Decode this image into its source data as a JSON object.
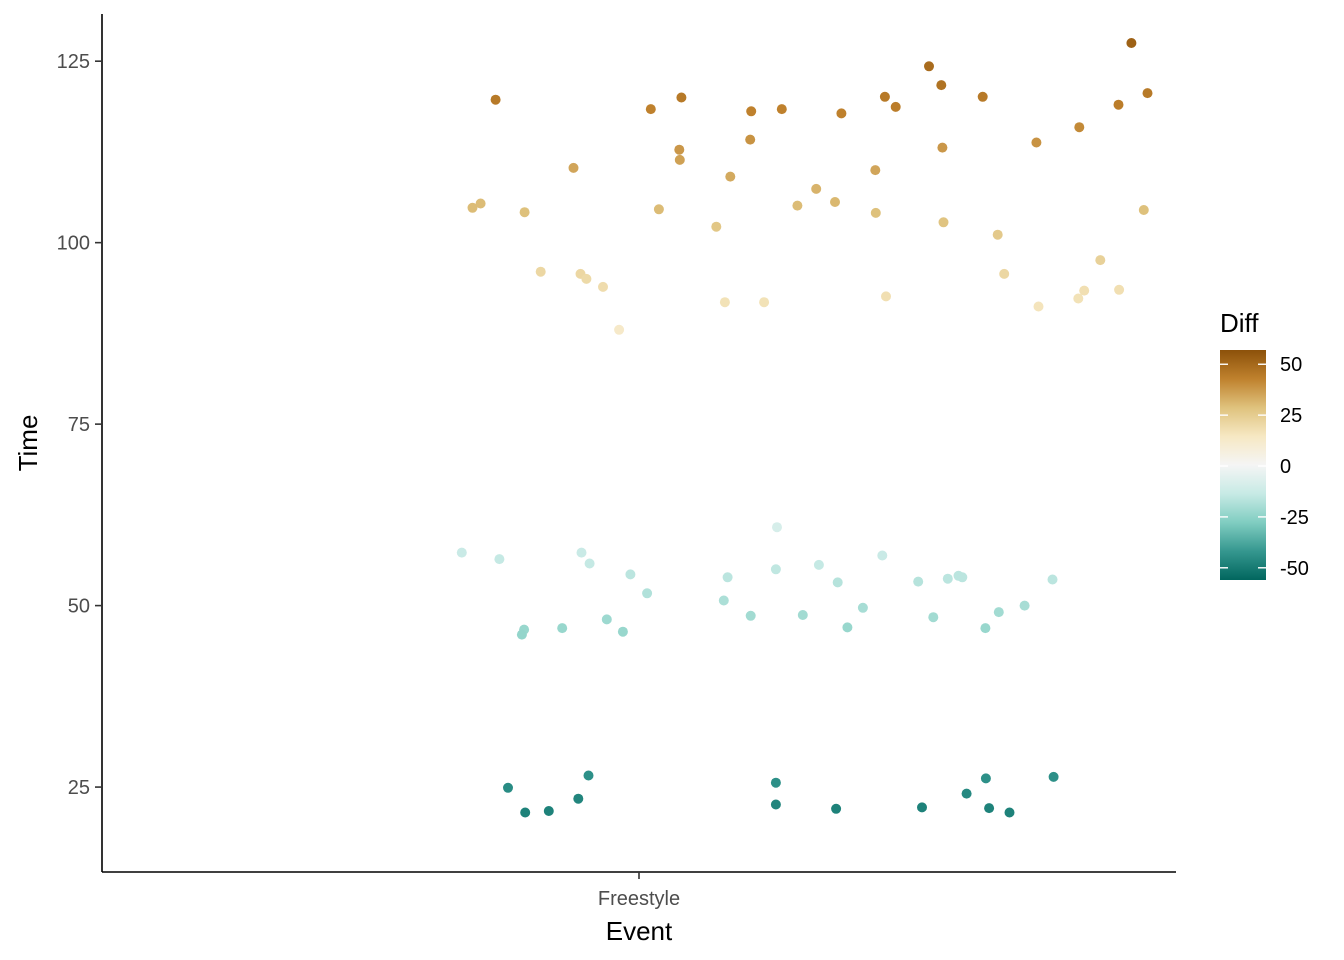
{
  "chart_data": {
    "type": "scatter",
    "title": "",
    "xlabel": "Event",
    "ylabel": "Time",
    "categories": [
      "Freestyle"
    ],
    "ylim": [
      13.3,
      131.5
    ],
    "yticks": [
      25,
      50,
      75,
      100,
      125
    ],
    "grid": false,
    "jitter_range": [
      -0.5,
      0.5
    ],
    "color_scale": {
      "name": "Diff",
      "palette": "BrBG",
      "limits": [
        -56,
        57
      ],
      "breaks": [
        50,
        25,
        0,
        -25,
        -50
      ],
      "colors": [
        "#01665e",
        "#35978f",
        "#80cdc1",
        "#c7eae5",
        "#f5f5f5",
        "#f6e8c3",
        "#dfc27d",
        "#bf812d",
        "#8c510a"
      ]
    },
    "points": [
      {
        "x": -0.33,
        "y": 57.3,
        "diff": -13
      },
      {
        "x": -0.26,
        "y": 56.4,
        "diff": -14
      },
      {
        "x": -0.214,
        "y": 46.7,
        "diff": -23
      },
      {
        "x": -0.218,
        "y": 46.0,
        "diff": -24
      },
      {
        "x": -0.143,
        "y": 46.9,
        "diff": -23
      },
      {
        "x": -0.212,
        "y": 21.5,
        "diff": -48
      },
      {
        "x": -0.168,
        "y": 21.7,
        "diff": -48
      },
      {
        "x": -0.113,
        "y": 23.4,
        "diff": -47
      },
      {
        "x": -0.094,
        "y": 26.6,
        "diff": -44
      },
      {
        "x": -0.244,
        "y": 24.9,
        "diff": -45
      },
      {
        "x": -0.107,
        "y": 57.3,
        "diff": -13
      },
      {
        "x": -0.092,
        "y": 55.8,
        "diff": -14
      },
      {
        "x": -0.06,
        "y": 48.1,
        "diff": -22
      },
      {
        "x": -0.03,
        "y": 46.4,
        "diff": -23
      },
      {
        "x": -0.016,
        "y": 54.3,
        "diff": -16
      },
      {
        "x": 0.015,
        "y": 51.7,
        "diff": -18
      },
      {
        "x": 0.158,
        "y": 50.7,
        "diff": -19
      },
      {
        "x": 0.165,
        "y": 53.9,
        "diff": -16
      },
      {
        "x": 0.208,
        "y": 48.6,
        "diff": -21
      },
      {
        "x": 0.255,
        "y": 55.0,
        "diff": -15
      },
      {
        "x": 0.257,
        "y": 60.8,
        "diff": -9
      },
      {
        "x": 0.255,
        "y": 25.6,
        "diff": -44
      },
      {
        "x": 0.255,
        "y": 22.6,
        "diff": -47
      },
      {
        "x": 0.305,
        "y": 48.7,
        "diff": -21
      },
      {
        "x": 0.335,
        "y": 55.6,
        "diff": -14
      },
      {
        "x": 0.37,
        "y": 53.2,
        "diff": -17
      },
      {
        "x": 0.388,
        "y": 47.0,
        "diff": -23
      },
      {
        "x": 0.367,
        "y": 22.0,
        "diff": -48
      },
      {
        "x": 0.417,
        "y": 49.7,
        "diff": -20
      },
      {
        "x": 0.453,
        "y": 56.9,
        "diff": -13
      },
      {
        "x": 0.52,
        "y": 53.3,
        "diff": -17
      },
      {
        "x": 0.527,
        "y": 22.2,
        "diff": -48
      },
      {
        "x": 0.548,
        "y": 48.4,
        "diff": -21
      },
      {
        "x": 0.575,
        "y": 53.7,
        "diff": -16
      },
      {
        "x": 0.595,
        "y": 54.1,
        "diff": -16
      },
      {
        "x": 0.602,
        "y": 53.9,
        "diff": -16
      },
      {
        "x": 0.61,
        "y": 24.1,
        "diff": -46
      },
      {
        "x": 0.645,
        "y": 46.9,
        "diff": -23
      },
      {
        "x": 0.646,
        "y": 26.2,
        "diff": -44
      },
      {
        "x": 0.652,
        "y": 22.1,
        "diff": -48
      },
      {
        "x": 0.67,
        "y": 49.1,
        "diff": -21
      },
      {
        "x": 0.69,
        "y": 21.5,
        "diff": -48
      },
      {
        "x": 0.718,
        "y": 50.0,
        "diff": -20
      },
      {
        "x": 0.77,
        "y": 53.6,
        "diff": -16
      },
      {
        "x": 0.772,
        "y": 26.4,
        "diff": -44
      },
      {
        "x": -0.31,
        "y": 104.8,
        "diff": 30
      },
      {
        "x": -0.295,
        "y": 105.4,
        "diff": 30
      },
      {
        "x": -0.267,
        "y": 119.7,
        "diff": 45
      },
      {
        "x": -0.213,
        "y": 104.2,
        "diff": 29
      },
      {
        "x": -0.183,
        "y": 96.0,
        "diff": 21
      },
      {
        "x": -0.122,
        "y": 110.3,
        "diff": 35
      },
      {
        "x": -0.109,
        "y": 95.7,
        "diff": 21
      },
      {
        "x": -0.098,
        "y": 95.0,
        "diff": 20
      },
      {
        "x": -0.067,
        "y": 93.9,
        "diff": 19
      },
      {
        "x": -0.037,
        "y": 88.0,
        "diff": 13
      },
      {
        "x": 0.022,
        "y": 118.4,
        "diff": 43
      },
      {
        "x": 0.037,
        "y": 104.6,
        "diff": 30
      },
      {
        "x": 0.075,
        "y": 112.8,
        "diff": 38
      },
      {
        "x": 0.076,
        "y": 111.4,
        "diff": 36
      },
      {
        "x": 0.079,
        "y": 120.0,
        "diff": 45
      },
      {
        "x": 0.144,
        "y": 102.2,
        "diff": 27
      },
      {
        "x": 0.16,
        "y": 91.8,
        "diff": 17
      },
      {
        "x": 0.17,
        "y": 109.1,
        "diff": 34
      },
      {
        "x": 0.207,
        "y": 114.2,
        "diff": 39
      },
      {
        "x": 0.209,
        "y": 118.1,
        "diff": 43
      },
      {
        "x": 0.233,
        "y": 91.8,
        "diff": 17
      },
      {
        "x": 0.266,
        "y": 118.4,
        "diff": 43
      },
      {
        "x": 0.295,
        "y": 105.1,
        "diff": 30
      },
      {
        "x": 0.33,
        "y": 107.4,
        "diff": 32
      },
      {
        "x": 0.365,
        "y": 105.6,
        "diff": 31
      },
      {
        "x": 0.377,
        "y": 117.8,
        "diff": 43
      },
      {
        "x": 0.44,
        "y": 110.0,
        "diff": 35
      },
      {
        "x": 0.441,
        "y": 104.1,
        "diff": 29
      },
      {
        "x": 0.458,
        "y": 120.1,
        "diff": 45
      },
      {
        "x": 0.46,
        "y": 92.6,
        "diff": 18
      },
      {
        "x": 0.478,
        "y": 118.7,
        "diff": 44
      },
      {
        "x": 0.54,
        "y": 124.3,
        "diff": 49
      },
      {
        "x": 0.563,
        "y": 121.7,
        "diff": 47
      },
      {
        "x": 0.565,
        "y": 113.1,
        "diff": 38
      },
      {
        "x": 0.567,
        "y": 102.8,
        "diff": 28
      },
      {
        "x": 0.64,
        "y": 120.1,
        "diff": 45
      },
      {
        "x": 0.668,
        "y": 101.1,
        "diff": 26
      },
      {
        "x": 0.68,
        "y": 95.7,
        "diff": 21
      },
      {
        "x": 0.744,
        "y": 91.2,
        "diff": 16
      },
      {
        "x": 0.74,
        "y": 113.8,
        "diff": 39
      },
      {
        "x": 0.82,
        "y": 115.9,
        "diff": 41
      },
      {
        "x": 0.818,
        "y": 92.3,
        "diff": 17
      },
      {
        "x": 0.829,
        "y": 93.4,
        "diff": 18
      },
      {
        "x": 0.859,
        "y": 97.6,
        "diff": 23
      },
      {
        "x": 0.893,
        "y": 119.0,
        "diff": 44
      },
      {
        "x": 0.894,
        "y": 93.5,
        "diff": 18
      },
      {
        "x": 0.917,
        "y": 127.5,
        "diff": 52
      },
      {
        "x": 0.94,
        "y": 104.5,
        "diff": 29
      },
      {
        "x": 0.947,
        "y": 120.6,
        "diff": 45
      }
    ]
  }
}
